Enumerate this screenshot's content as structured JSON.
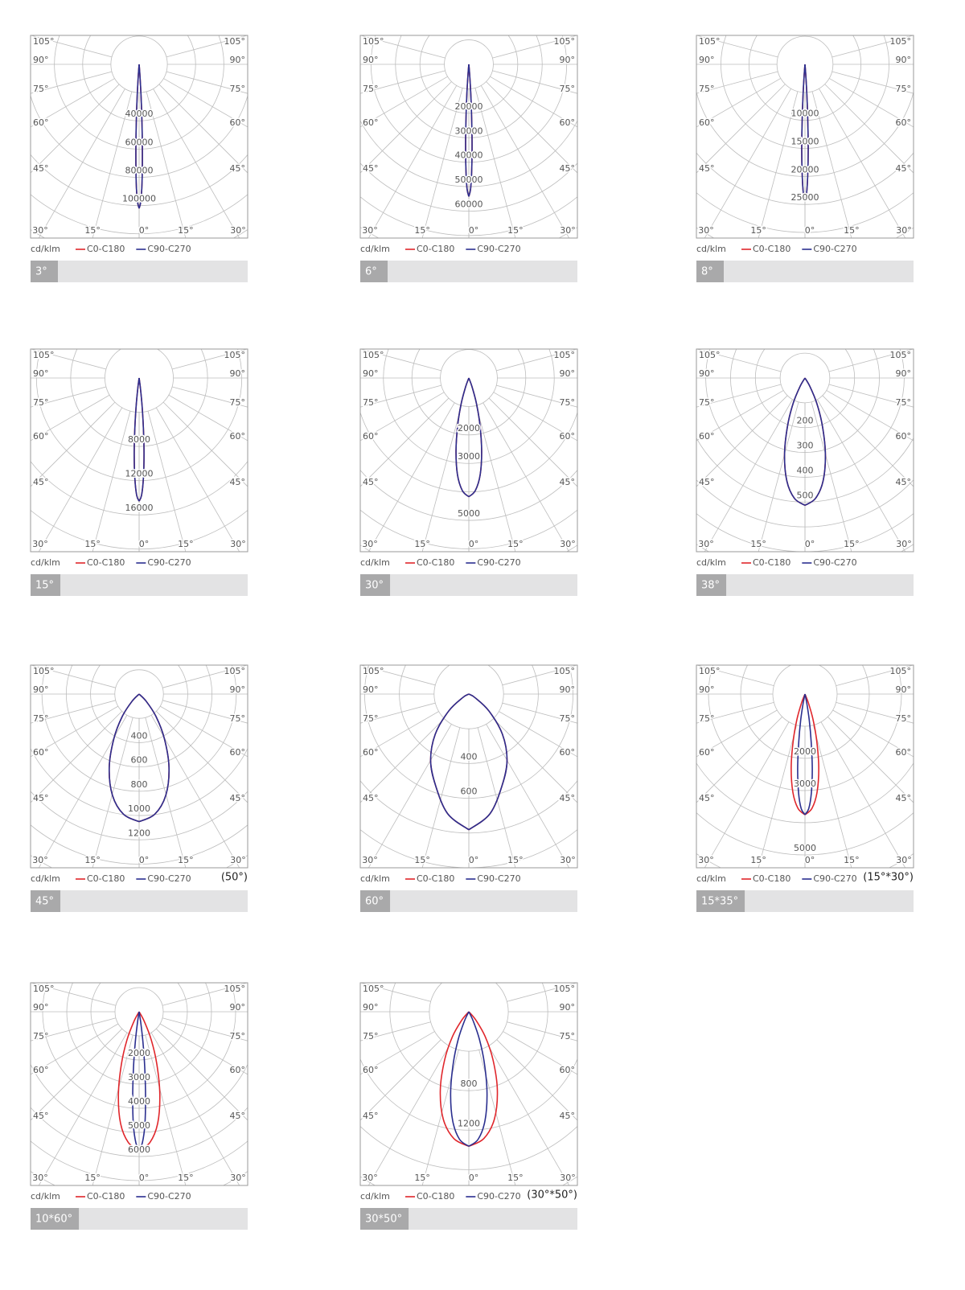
{
  "chart_data": [
    {
      "type": "polar",
      "caption": "3°",
      "unit_label": "cd/klm",
      "rlim": [
        0,
        123000
      ],
      "rticks": [
        40000,
        60000,
        80000,
        100000
      ],
      "xticks": [
        {
          "value": 105,
          "label": "105°"
        },
        {
          "value": 90,
          "label": "90°"
        },
        {
          "value": 75,
          "label": "75°"
        },
        {
          "value": 60,
          "label": "60°"
        },
        {
          "value": 45,
          "label": "45°"
        },
        {
          "value": 30,
          "label": "30°"
        },
        {
          "value": 15,
          "label": "15°"
        },
        {
          "value": 0,
          "label": "0°"
        }
      ],
      "series": [
        {
          "name": "C0-C180",
          "color": "#e0262b",
          "x": [
            0,
            0.7,
            1.4,
            2.1,
            2.8,
            3.5,
            4.2,
            4.9
          ],
          "values": [
            102000,
            97000,
            84000,
            63000,
            41000,
            22000,
            8000,
            0
          ]
        },
        {
          "name": "C90-C270",
          "color": "#2b2f8f",
          "x": [
            0,
            0.7,
            1.4,
            2.1,
            2.8,
            3.5,
            4.2,
            4.9
          ],
          "values": [
            102000,
            97000,
            84000,
            63000,
            41000,
            22000,
            8000,
            0
          ]
        }
      ]
    },
    {
      "type": "polar",
      "caption": "6°",
      "unit_label": "cd/klm",
      "rlim": [
        0,
        71000
      ],
      "rticks": [
        20000,
        30000,
        40000,
        50000,
        60000
      ],
      "xticks": [
        {
          "value": 105,
          "label": "105°"
        },
        {
          "value": 90,
          "label": "90°"
        },
        {
          "value": 75,
          "label": "75°"
        },
        {
          "value": 60,
          "label": "60°"
        },
        {
          "value": 45,
          "label": "45°"
        },
        {
          "value": 30,
          "label": "30°"
        },
        {
          "value": 15,
          "label": "15°"
        },
        {
          "value": 0,
          "label": "0°"
        }
      ],
      "series": [
        {
          "name": "C0-C180",
          "color": "#e0262b",
          "x": [
            0,
            0.8,
            1.5,
            2.3,
            3,
            3.8,
            4.6,
            5.3
          ],
          "values": [
            54000,
            51000,
            44000,
            33000,
            22000,
            12000,
            4300,
            0
          ]
        },
        {
          "name": "C90-C270",
          "color": "#2b2f8f",
          "x": [
            0,
            0.8,
            1.5,
            2.3,
            3,
            3.8,
            4.6,
            5.3
          ],
          "values": [
            54000,
            51000,
            44000,
            33000,
            22000,
            12000,
            4300,
            0
          ]
        }
      ]
    },
    {
      "type": "polar",
      "caption": "8°",
      "unit_label": "cd/klm",
      "rlim": [
        0,
        31000
      ],
      "rticks": [
        10000,
        15000,
        20000,
        25000
      ],
      "xticks": [
        {
          "value": 105,
          "label": "105°"
        },
        {
          "value": 90,
          "label": "90°"
        },
        {
          "value": 75,
          "label": "75°"
        },
        {
          "value": 60,
          "label": "60°"
        },
        {
          "value": 45,
          "label": "45°"
        },
        {
          "value": 30,
          "label": "30°"
        },
        {
          "value": 15,
          "label": "15°"
        },
        {
          "value": 0,
          "label": "0°"
        }
      ],
      "series": [
        {
          "name": "C0-C180",
          "color": "#e0262b",
          "x": [
            0,
            0.7,
            1.4,
            2.2,
            2.9,
            3.6,
            4.3,
            5
          ],
          "values": [
            24300,
            23100,
            19900,
            15100,
            9700,
            5300,
            1900,
            0
          ]
        },
        {
          "name": "C90-C270",
          "color": "#2b2f8f",
          "x": [
            0,
            0.7,
            1.4,
            2.2,
            2.9,
            3.6,
            4.3,
            5
          ],
          "values": [
            24300,
            23100,
            19900,
            15100,
            9700,
            5300,
            1900,
            0
          ]
        }
      ]
    },
    {
      "type": "polar",
      "caption": "15°",
      "unit_label": "cd/klm",
      "rlim": [
        0,
        20300
      ],
      "rticks": [
        8000,
        12000,
        16000
      ],
      "xticks": [
        {
          "value": 105,
          "label": "105°"
        },
        {
          "value": 90,
          "label": "90°"
        },
        {
          "value": 75,
          "label": "75°"
        },
        {
          "value": 60,
          "label": "60°"
        },
        {
          "value": 45,
          "label": "45°"
        },
        {
          "value": 30,
          "label": "30°"
        },
        {
          "value": 15,
          "label": "15°"
        },
        {
          "value": 0,
          "label": "0°"
        }
      ],
      "series": [
        {
          "name": "C0-C180",
          "color": "#e0262b",
          "x": [
            0,
            1.2,
            2.4,
            3.7,
            4.9,
            6.1,
            7.3,
            8.5
          ],
          "values": [
            14400,
            13700,
            11800,
            8900,
            5800,
            3200,
            1200,
            0
          ]
        },
        {
          "name": "C90-C270",
          "color": "#2b2f8f",
          "x": [
            0,
            1.2,
            2.4,
            3.7,
            4.9,
            6.1,
            7.3,
            8.5
          ],
          "values": [
            14400,
            13700,
            11800,
            8900,
            5800,
            3200,
            1200,
            0
          ]
        }
      ]
    },
    {
      "type": "polar",
      "caption": "30°",
      "unit_label": "cd/klm",
      "rlim": [
        0,
        6100
      ],
      "rticks": [
        2000,
        3000,
        5000
      ],
      "xticks": [
        {
          "value": 105,
          "label": "105°"
        },
        {
          "value": 90,
          "label": "90°"
        },
        {
          "value": 75,
          "label": "75°"
        },
        {
          "value": 60,
          "label": "60°"
        },
        {
          "value": 45,
          "label": "45°"
        },
        {
          "value": 30,
          "label": "30°"
        },
        {
          "value": 15,
          "label": "15°"
        },
        {
          "value": 0,
          "label": "0°"
        }
      ],
      "series": [
        {
          "name": "C0-C180",
          "color": "#e0262b",
          "x": [
            0,
            3.3,
            6.7,
            10,
            13.4,
            16.7,
            20,
            23.4
          ],
          "values": [
            4170,
            3960,
            3420,
            2590,
            1670,
            920,
            330,
            0
          ]
        },
        {
          "name": "C90-C270",
          "color": "#2b2f8f",
          "x": [
            0,
            3.3,
            6.7,
            10,
            13.4,
            16.7,
            20,
            23.4
          ],
          "values": [
            4170,
            3960,
            3420,
            2590,
            1670,
            920,
            330,
            0
          ]
        }
      ]
    },
    {
      "type": "polar",
      "caption": "38°",
      "unit_label": "cd/klm",
      "rlim": [
        0,
        700
      ],
      "rticks": [
        200,
        300,
        400,
        500
      ],
      "xticks": [
        {
          "value": 105,
          "label": "105°"
        },
        {
          "value": 90,
          "label": "90°"
        },
        {
          "value": 75,
          "label": "75°"
        },
        {
          "value": 60,
          "label": "60°"
        },
        {
          "value": 45,
          "label": "45°"
        },
        {
          "value": 30,
          "label": "30°"
        },
        {
          "value": 15,
          "label": "15°"
        },
        {
          "value": 0,
          "label": "0°"
        }
      ],
      "series": [
        {
          "name": "C0-C180",
          "color": "#e0262b",
          "x": [
            0,
            5,
            10,
            15,
            20,
            25,
            30,
            35
          ],
          "values": [
            513,
            487,
            421,
            318,
            205,
            113,
            41,
            0
          ]
        },
        {
          "name": "C90-C270",
          "color": "#2b2f8f",
          "x": [
            0,
            5,
            10,
            15,
            20,
            25,
            30,
            35
          ],
          "values": [
            513,
            487,
            421,
            318,
            205,
            113,
            41,
            0
          ]
        }
      ]
    },
    {
      "type": "polar",
      "caption": "45°",
      "unit_label": "cd/klm",
      "annotation": "(50°)",
      "rlim": [
        0,
        1430
      ],
      "rticks": [
        400,
        600,
        800,
        1000,
        1200
      ],
      "xticks": [
        {
          "value": 105,
          "label": "105°"
        },
        {
          "value": 90,
          "label": "90°"
        },
        {
          "value": 75,
          "label": "75°"
        },
        {
          "value": 60,
          "label": "60°"
        },
        {
          "value": 45,
          "label": "45°"
        },
        {
          "value": 30,
          "label": "30°"
        },
        {
          "value": 15,
          "label": "15°"
        },
        {
          "value": 0,
          "label": "0°"
        }
      ],
      "series": [
        {
          "name": "C0-C180",
          "color": "#e0262b",
          "x": [
            0,
            7.4,
            14.8,
            22.2,
            29.6,
            37,
            44.4,
            51.8
          ],
          "values": [
            1050,
            998,
            861,
            651,
            420,
            231,
            84,
            0
          ]
        },
        {
          "name": "C90-C270",
          "color": "#2b2f8f",
          "x": [
            0,
            7.4,
            14.8,
            22.2,
            29.6,
            37,
            44.4,
            51.8
          ],
          "values": [
            1050,
            998,
            861,
            651,
            420,
            231,
            84,
            0
          ]
        }
      ]
    },
    {
      "type": "polar",
      "caption": "60°",
      "unit_label": "cd/klm",
      "rlim": [
        0,
        1000
      ],
      "rticks": [
        400,
        600
      ],
      "xticks": [
        {
          "value": 105,
          "label": "105°"
        },
        {
          "value": 90,
          "label": "90°"
        },
        {
          "value": 75,
          "label": "75°"
        },
        {
          "value": 60,
          "label": "60°"
        },
        {
          "value": 45,
          "label": "45°"
        },
        {
          "value": 30,
          "label": "30°"
        },
        {
          "value": 15,
          "label": "15°"
        },
        {
          "value": 0,
          "label": "0°"
        }
      ],
      "series": [
        {
          "name": "C0-C180",
          "color": "#e0262b",
          "x": [
            0,
            10,
            20,
            30,
            40,
            50,
            60,
            70
          ],
          "values": [
            781,
            700,
            560,
            440,
            300,
            150,
            40,
            0
          ]
        },
        {
          "name": "C90-C270",
          "color": "#2b2f8f",
          "x": [
            0,
            10,
            20,
            30,
            40,
            50,
            60,
            70
          ],
          "values": [
            781,
            700,
            560,
            440,
            300,
            150,
            40,
            0
          ]
        }
      ]
    },
    {
      "type": "polar",
      "caption": "15*35°",
      "unit_label": "cd/klm",
      "annotation": "(15°*30°)",
      "rlim": [
        0,
        5400
      ],
      "rticks": [
        2000,
        3000,
        5000
      ],
      "xticks": [
        {
          "value": 105,
          "label": "105°"
        },
        {
          "value": 90,
          "label": "90°"
        },
        {
          "value": 75,
          "label": "75°"
        },
        {
          "value": 60,
          "label": "60°"
        },
        {
          "value": 45,
          "label": "45°"
        },
        {
          "value": 30,
          "label": "30°"
        },
        {
          "value": 15,
          "label": "15°"
        },
        {
          "value": 0,
          "label": "0°"
        }
      ],
      "series": [
        {
          "name": "C0-C180",
          "color": "#e0262b",
          "x": [
            0,
            3.5,
            7,
            10.6,
            14.1,
            17.6,
            21.1,
            24.6
          ],
          "values": [
            3750,
            3560,
            3080,
            2330,
            1500,
            830,
            300,
            0
          ]
        },
        {
          "name": "C90-C270",
          "color": "#2b2f8f",
          "x": [
            0,
            1.9,
            3.7,
            5.6,
            7.4,
            9.3,
            11.2,
            13
          ],
          "values": [
            3750,
            3560,
            3080,
            2330,
            1500,
            830,
            300,
            0
          ]
        }
      ]
    },
    {
      "type": "polar",
      "caption": "10*60°",
      "unit_label": "cd/klm",
      "rlim": [
        0,
        7200
      ],
      "rticks": [
        2000,
        3000,
        4000,
        5000,
        6000
      ],
      "xticks": [
        {
          "value": 105,
          "label": "105°"
        },
        {
          "value": 90,
          "label": "90°"
        },
        {
          "value": 75,
          "label": "75°"
        },
        {
          "value": 60,
          "label": "60°"
        },
        {
          "value": 45,
          "label": "45°"
        },
        {
          "value": 30,
          "label": "30°"
        },
        {
          "value": 15,
          "label": "15°"
        },
        {
          "value": 0,
          "label": "0°"
        }
      ],
      "series": [
        {
          "name": "C0-C180",
          "color": "#e0262b",
          "x": [
            0,
            4.7,
            9.4,
            14,
            18.7,
            23.4,
            28.1,
            32.8
          ],
          "values": [
            5730,
            5440,
            4700,
            3550,
            2290,
            1260,
            460,
            0
          ]
        },
        {
          "name": "C90-C270",
          "color": "#2b2f8f",
          "x": [
            0,
            1.4,
            2.9,
            4.3,
            5.8,
            7.2,
            8.6,
            10.1
          ],
          "values": [
            5730,
            5440,
            4700,
            3550,
            2290,
            1260,
            460,
            0
          ]
        }
      ]
    },
    {
      "type": "polar",
      "caption": "30*50°",
      "unit_label": "cd/klm",
      "annotation": "(30°*50°)",
      "rlim": [
        0,
        1760
      ],
      "rticks": [
        800,
        1200
      ],
      "xticks": [
        {
          "value": 105,
          "label": "105°"
        },
        {
          "value": 90,
          "label": "90°"
        },
        {
          "value": 75,
          "label": "75°"
        },
        {
          "value": 60,
          "label": "60°"
        },
        {
          "value": 45,
          "label": "45°"
        },
        {
          "value": 30,
          "label": "30°"
        },
        {
          "value": 15,
          "label": "15°"
        },
        {
          "value": 0,
          "label": "0°"
        }
      ],
      "series": [
        {
          "name": "C0-C180",
          "color": "#e0262b",
          "x": [
            0,
            6.7,
            13.4,
            20,
            26.7,
            33.4,
            40.1,
            46.8
          ],
          "values": [
            1363,
            1295,
            1118,
            845,
            545,
            300,
            109,
            0
          ]
        },
        {
          "name": "C90-C270",
          "color": "#2b2f8f",
          "x": [
            0,
            4.2,
            8.4,
            12.6,
            16.8,
            21,
            25.2,
            29.4
          ],
          "values": [
            1363,
            1295,
            1118,
            845,
            545,
            300,
            109,
            0
          ]
        }
      ]
    }
  ]
}
